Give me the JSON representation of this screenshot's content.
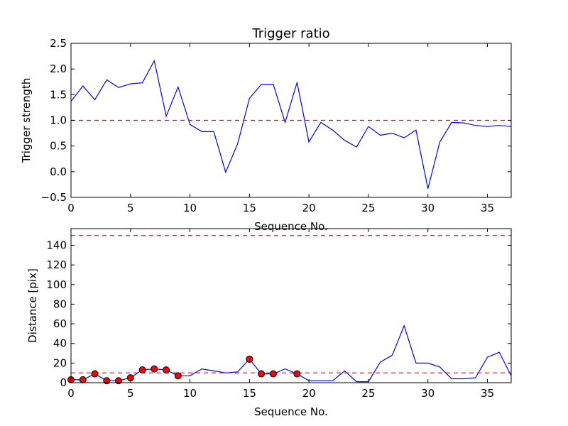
{
  "colors": {
    "line": "#0000ff",
    "threshold": "#ff0000",
    "marker_fill": "#ff0000",
    "marker_edge": "#000000",
    "background": "#ffffff"
  },
  "chart_data": [
    {
      "type": "line",
      "title": "Trigger ratio",
      "xlabel": "Sequence No.",
      "ylabel": "Trigger strength",
      "xlim": [
        0,
        37
      ],
      "ylim": [
        -0.5,
        2.5
      ],
      "xticks": [
        0,
        5,
        10,
        15,
        20,
        25,
        30,
        35
      ],
      "yticks": [
        -0.5,
        0.0,
        0.5,
        1.0,
        1.5,
        2.0,
        2.5
      ],
      "ytick_labels": [
        "−0.5",
        "0.0",
        "0.5",
        "1.0",
        "1.5",
        "2.0",
        "2.5"
      ],
      "grid": false,
      "x": [
        0,
        1,
        2,
        3,
        4,
        5,
        6,
        7,
        8,
        9,
        10,
        11,
        12,
        13,
        14,
        15,
        16,
        17,
        18,
        19,
        20,
        21,
        22,
        23,
        24,
        25,
        26,
        27,
        28,
        29,
        30,
        31,
        32,
        33,
        34,
        35,
        36,
        37
      ],
      "values": [
        1.37,
        1.67,
        1.4,
        1.79,
        1.64,
        1.71,
        1.73,
        2.16,
        1.08,
        1.65,
        0.92,
        0.78,
        0.78,
        -0.01,
        0.54,
        1.43,
        1.7,
        1.7,
        0.96,
        1.74,
        0.58,
        0.96,
        0.81,
        0.61,
        0.48,
        0.88,
        0.71,
        0.75,
        0.66,
        0.81,
        -0.33,
        0.58,
        0.96,
        0.95,
        0.9,
        0.88,
        0.9,
        0.88
      ],
      "threshold": 1.0
    },
    {
      "type": "line",
      "title": "",
      "xlabel": "Sequence No.",
      "ylabel": "Distance [pix]",
      "xlim": [
        0,
        37
      ],
      "ylim": [
        0,
        157
      ],
      "xticks": [
        0,
        5,
        10,
        15,
        20,
        25,
        30,
        35
      ],
      "yticks": [
        0,
        20,
        40,
        60,
        80,
        100,
        120,
        140
      ],
      "ytick_labels": [
        "0",
        "20",
        "40",
        "60",
        "80",
        "100",
        "120",
        "140"
      ],
      "grid": false,
      "x": [
        0,
        1,
        2,
        3,
        4,
        5,
        6,
        7,
        8,
        9,
        10,
        11,
        12,
        13,
        14,
        15,
        16,
        17,
        18,
        19,
        20,
        21,
        22,
        23,
        24,
        25,
        26,
        27,
        28,
        29,
        30,
        31,
        32,
        33,
        34,
        35,
        36,
        37
      ],
      "values": [
        3,
        3,
        9,
        2,
        2,
        5,
        13,
        14,
        13,
        7,
        7,
        14,
        12,
        10,
        11,
        24,
        9,
        9,
        14,
        9,
        2,
        2,
        2,
        12,
        1,
        1,
        21,
        28,
        58,
        20,
        20,
        16,
        4,
        4,
        5,
        26,
        31,
        7
      ],
      "marker_indices": [
        0,
        1,
        2,
        3,
        4,
        5,
        6,
        7,
        8,
        9,
        15,
        16,
        17,
        19
      ],
      "thresholds": [
        10,
        150
      ]
    }
  ]
}
